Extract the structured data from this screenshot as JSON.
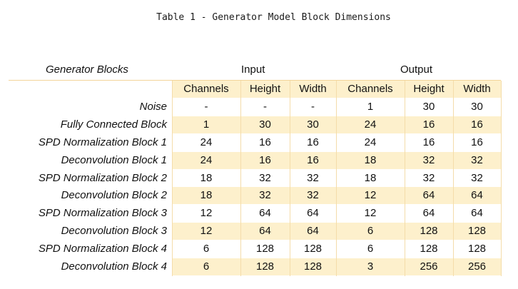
{
  "title": "Table 1 - Generator Model Block Dimensions",
  "header": {
    "row_label": "Generator Blocks",
    "groups": [
      "Input",
      "Output"
    ],
    "columns": [
      "Channels",
      "Height",
      "Width",
      "Channels",
      "Height",
      "Width"
    ]
  },
  "rows": [
    {
      "label": "Noise",
      "values": [
        "-",
        "-",
        "-",
        "1",
        "30",
        "30"
      ]
    },
    {
      "label": "Fully Connected Block",
      "values": [
        "1",
        "30",
        "30",
        "24",
        "16",
        "16"
      ]
    },
    {
      "label": "SPD Normalization Block 1",
      "values": [
        "24",
        "16",
        "16",
        "24",
        "16",
        "16"
      ]
    },
    {
      "label": "Deconvolution Block 1",
      "values": [
        "24",
        "16",
        "16",
        "18",
        "32",
        "32"
      ]
    },
    {
      "label": "SPD Normalization Block 2",
      "values": [
        "18",
        "32",
        "32",
        "18",
        "32",
        "32"
      ]
    },
    {
      "label": "Deconvolution Block 2",
      "values": [
        "18",
        "32",
        "32",
        "12",
        "64",
        "64"
      ]
    },
    {
      "label": "SPD Normalization Block 3",
      "values": [
        "12",
        "64",
        "64",
        "12",
        "64",
        "64"
      ]
    },
    {
      "label": "Deconvolution Block 3",
      "values": [
        "12",
        "64",
        "64",
        "6",
        "128",
        "128"
      ]
    },
    {
      "label": "SPD Normalization Block 4",
      "values": [
        "6",
        "128",
        "128",
        "6",
        "128",
        "128"
      ]
    },
    {
      "label": "Deconvolution Block 4",
      "values": [
        "6",
        "128",
        "128",
        "3",
        "256",
        "256"
      ]
    }
  ],
  "colors": {
    "shade": "#fdf0cc",
    "grid": "#f4dcaa"
  }
}
